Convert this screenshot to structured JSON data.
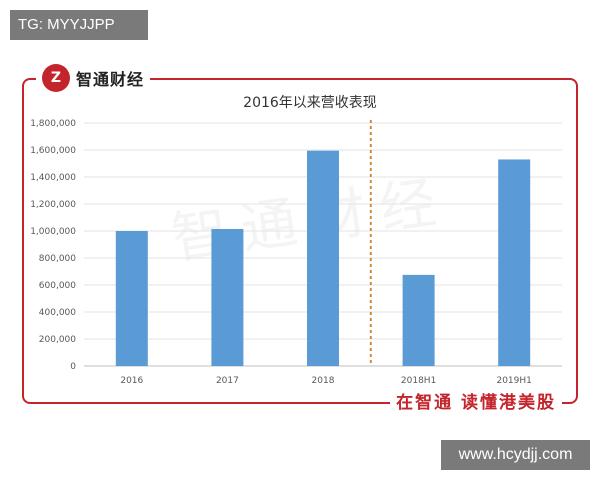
{
  "overlay": {
    "top_left_label": "TG: MYYJJPP",
    "bottom_right_label": "www.hcydjj.com"
  },
  "brand": {
    "logo_text": "Z",
    "name": "智通财经",
    "slogan": "在智通 读懂港美股",
    "accent_color": "#c4242b"
  },
  "chart_data": {
    "type": "bar",
    "title": "2016年以来营收表现",
    "categories": [
      "2016",
      "2017",
      "2018",
      "2018H1",
      "2019H1"
    ],
    "values": [
      1000000,
      1015000,
      1595000,
      675000,
      1530000
    ],
    "y_ticks": [
      "0",
      "200,000",
      "400,000",
      "600,000",
      "800,000",
      "1,000,000",
      "1,200,000",
      "1,400,000",
      "1,600,000",
      "1,800,000"
    ],
    "ylim": [
      0,
      1800000
    ],
    "xlabel": "",
    "ylabel": "",
    "grid": true,
    "divider_after_category_index": 2,
    "bar_color": "#5b9bd5",
    "divider_color": "#d4883a"
  }
}
